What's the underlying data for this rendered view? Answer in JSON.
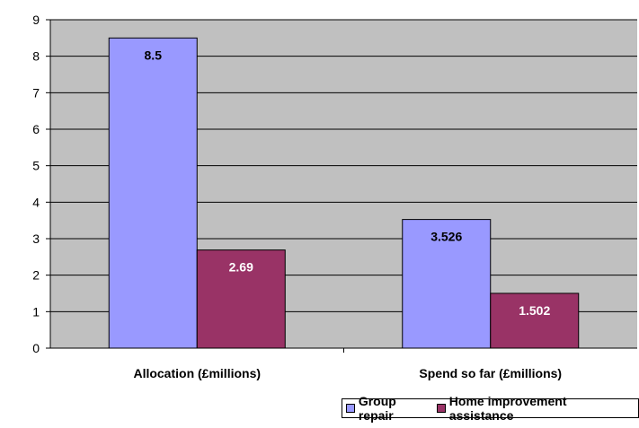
{
  "chart_data": {
    "type": "bar",
    "categories": [
      "Allocation (£millions)",
      "Spend so far (£millions)"
    ],
    "series": [
      {
        "name": "Group repair",
        "values": [
          8.5,
          3.526
        ],
        "labels": [
          "8.5",
          "3.526"
        ],
        "color": "#9999ff",
        "label_color": "#000000"
      },
      {
        "name": "Home improvement assistance",
        "values": [
          2.69,
          1.502
        ],
        "labels": [
          "2.69",
          "1.502"
        ],
        "color": "#993366",
        "label_color": "#ffffff"
      }
    ],
    "ylim": [
      0,
      9
    ],
    "yticks": [
      "0",
      "1",
      "2",
      "3",
      "4",
      "5",
      "6",
      "7",
      "8",
      "9"
    ],
    "grid": true,
    "legend_position": "bottom",
    "plot_background": "#c0c0c0",
    "title": "",
    "xlabel": "",
    "ylabel": ""
  }
}
